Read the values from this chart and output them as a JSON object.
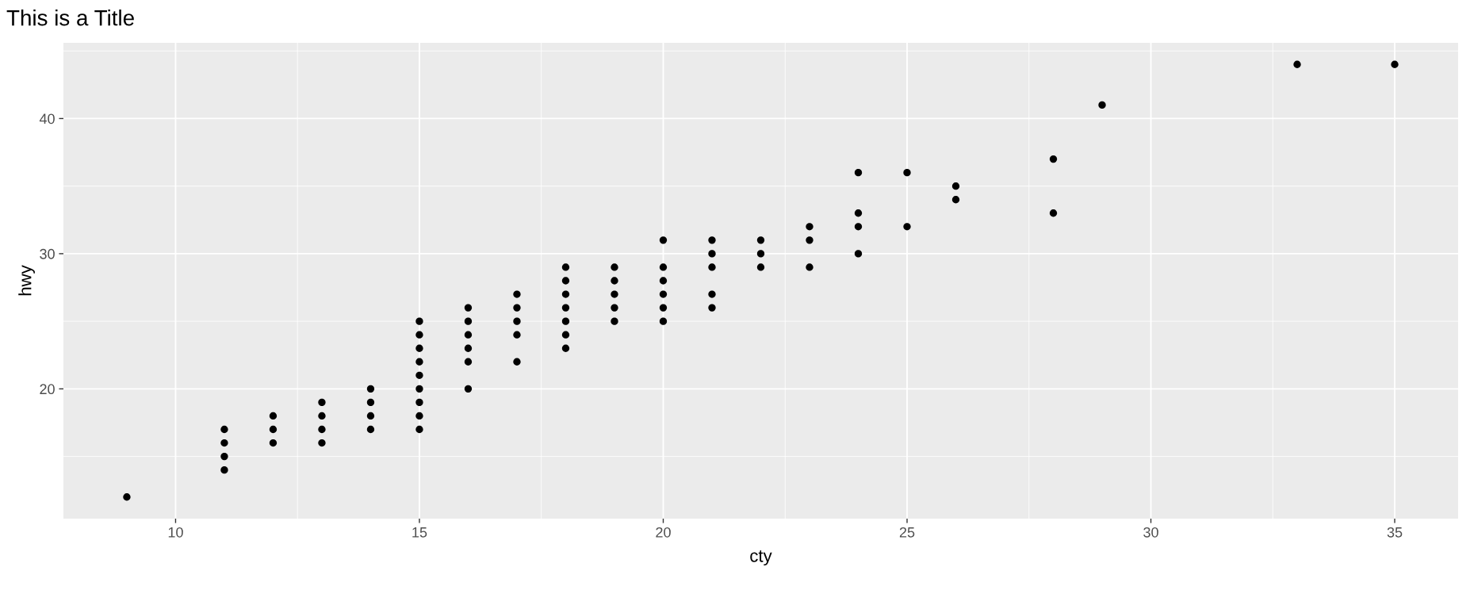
{
  "chart_data": {
    "type": "scatter",
    "title": "This is a Title",
    "xlabel": "cty",
    "ylabel": "hwy",
    "xlim": [
      7.7,
      36.3
    ],
    "ylim": [
      10.4,
      45.6
    ],
    "xticks": [
      10,
      15,
      20,
      25,
      30,
      35
    ],
    "yticks": [
      20,
      30,
      40
    ],
    "grid": true,
    "marker": "circle",
    "series": [
      {
        "color": "#000000",
        "x": [
          9,
          11,
          11,
          11,
          11,
          12,
          12,
          12,
          13,
          13,
          13,
          13,
          14,
          14,
          14,
          14,
          15,
          15,
          15,
          15,
          15,
          15,
          15,
          15,
          15,
          16,
          16,
          16,
          16,
          16,
          16,
          17,
          17,
          17,
          17,
          17,
          18,
          18,
          18,
          18,
          18,
          18,
          18,
          19,
          19,
          19,
          19,
          19,
          20,
          20,
          20,
          20,
          20,
          20,
          21,
          21,
          21,
          21,
          21,
          22,
          22,
          22,
          23,
          23,
          23,
          24,
          24,
          24,
          24,
          25,
          25,
          26,
          26,
          28,
          28,
          29,
          33,
          35
        ],
        "values": [
          12,
          14,
          15,
          16,
          17,
          16,
          17,
          18,
          16,
          17,
          18,
          19,
          17,
          18,
          19,
          20,
          17,
          18,
          19,
          20,
          21,
          22,
          23,
          24,
          25,
          20,
          22,
          23,
          24,
          25,
          26,
          22,
          24,
          25,
          26,
          27,
          23,
          24,
          25,
          26,
          27,
          28,
          29,
          25,
          26,
          27,
          28,
          29,
          25,
          26,
          27,
          28,
          29,
          31,
          26,
          27,
          29,
          30,
          31,
          29,
          30,
          31,
          29,
          31,
          32,
          30,
          32,
          33,
          36,
          32,
          36,
          34,
          35,
          33,
          37,
          41,
          44,
          44
        ]
      }
    ]
  }
}
